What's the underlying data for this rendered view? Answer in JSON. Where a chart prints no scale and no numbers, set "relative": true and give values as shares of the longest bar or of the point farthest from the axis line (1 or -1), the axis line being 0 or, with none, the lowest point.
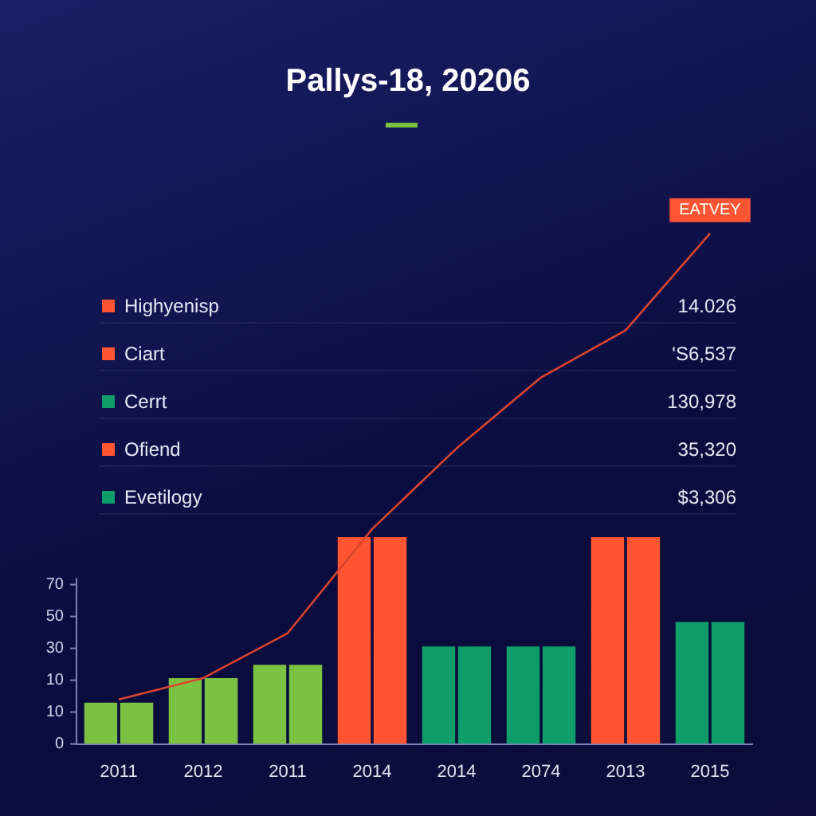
{
  "chart_data": {
    "type": "bar",
    "title": "Pallys-18, 20206",
    "relative": true,
    "categories": [
      "2011",
      "2012",
      "2011",
      "2014",
      "2014",
      "2074",
      "2013",
      "2015"
    ],
    "series": [
      {
        "colors": [
          "#7cc242",
          "#7cc242",
          "#7cc242",
          "#ff5533",
          "#0f9d6a",
          "#0f9d6a",
          "#ff5533",
          "#0f9d6a"
        ],
        "values": [
          0.081,
          0.129,
          0.155,
          0.405,
          0.191,
          0.191,
          0.405,
          0.239
        ]
      },
      {
        "colors": [
          "#7cc242",
          "#7cc242",
          "#7cc242",
          "#ff5533",
          "#0f9d6a",
          "#0f9d6a",
          "#ff5533",
          "#0f9d6a"
        ],
        "values": [
          0.081,
          0.129,
          0.155,
          0.405,
          0.191,
          0.191,
          0.405,
          0.239
        ]
      },
      {
        "type": "line",
        "color": "#d9442c",
        "values": [
          0.087,
          0.129,
          0.217,
          0.421,
          0.579,
          0.718,
          0.81,
          1
        ]
      }
    ],
    "legend": false,
    "marker": "none",
    "annotations": [
      "Highyenisp",
      "14.026",
      "Ciart",
      "'S6,537",
      "Cerrt",
      "130,978",
      "Ofiend",
      "35,320",
      "Evetilogy",
      "$3,306",
      "EATVEY",
      "0",
      "10",
      "10",
      "30",
      "50",
      "70"
    ]
  }
}
